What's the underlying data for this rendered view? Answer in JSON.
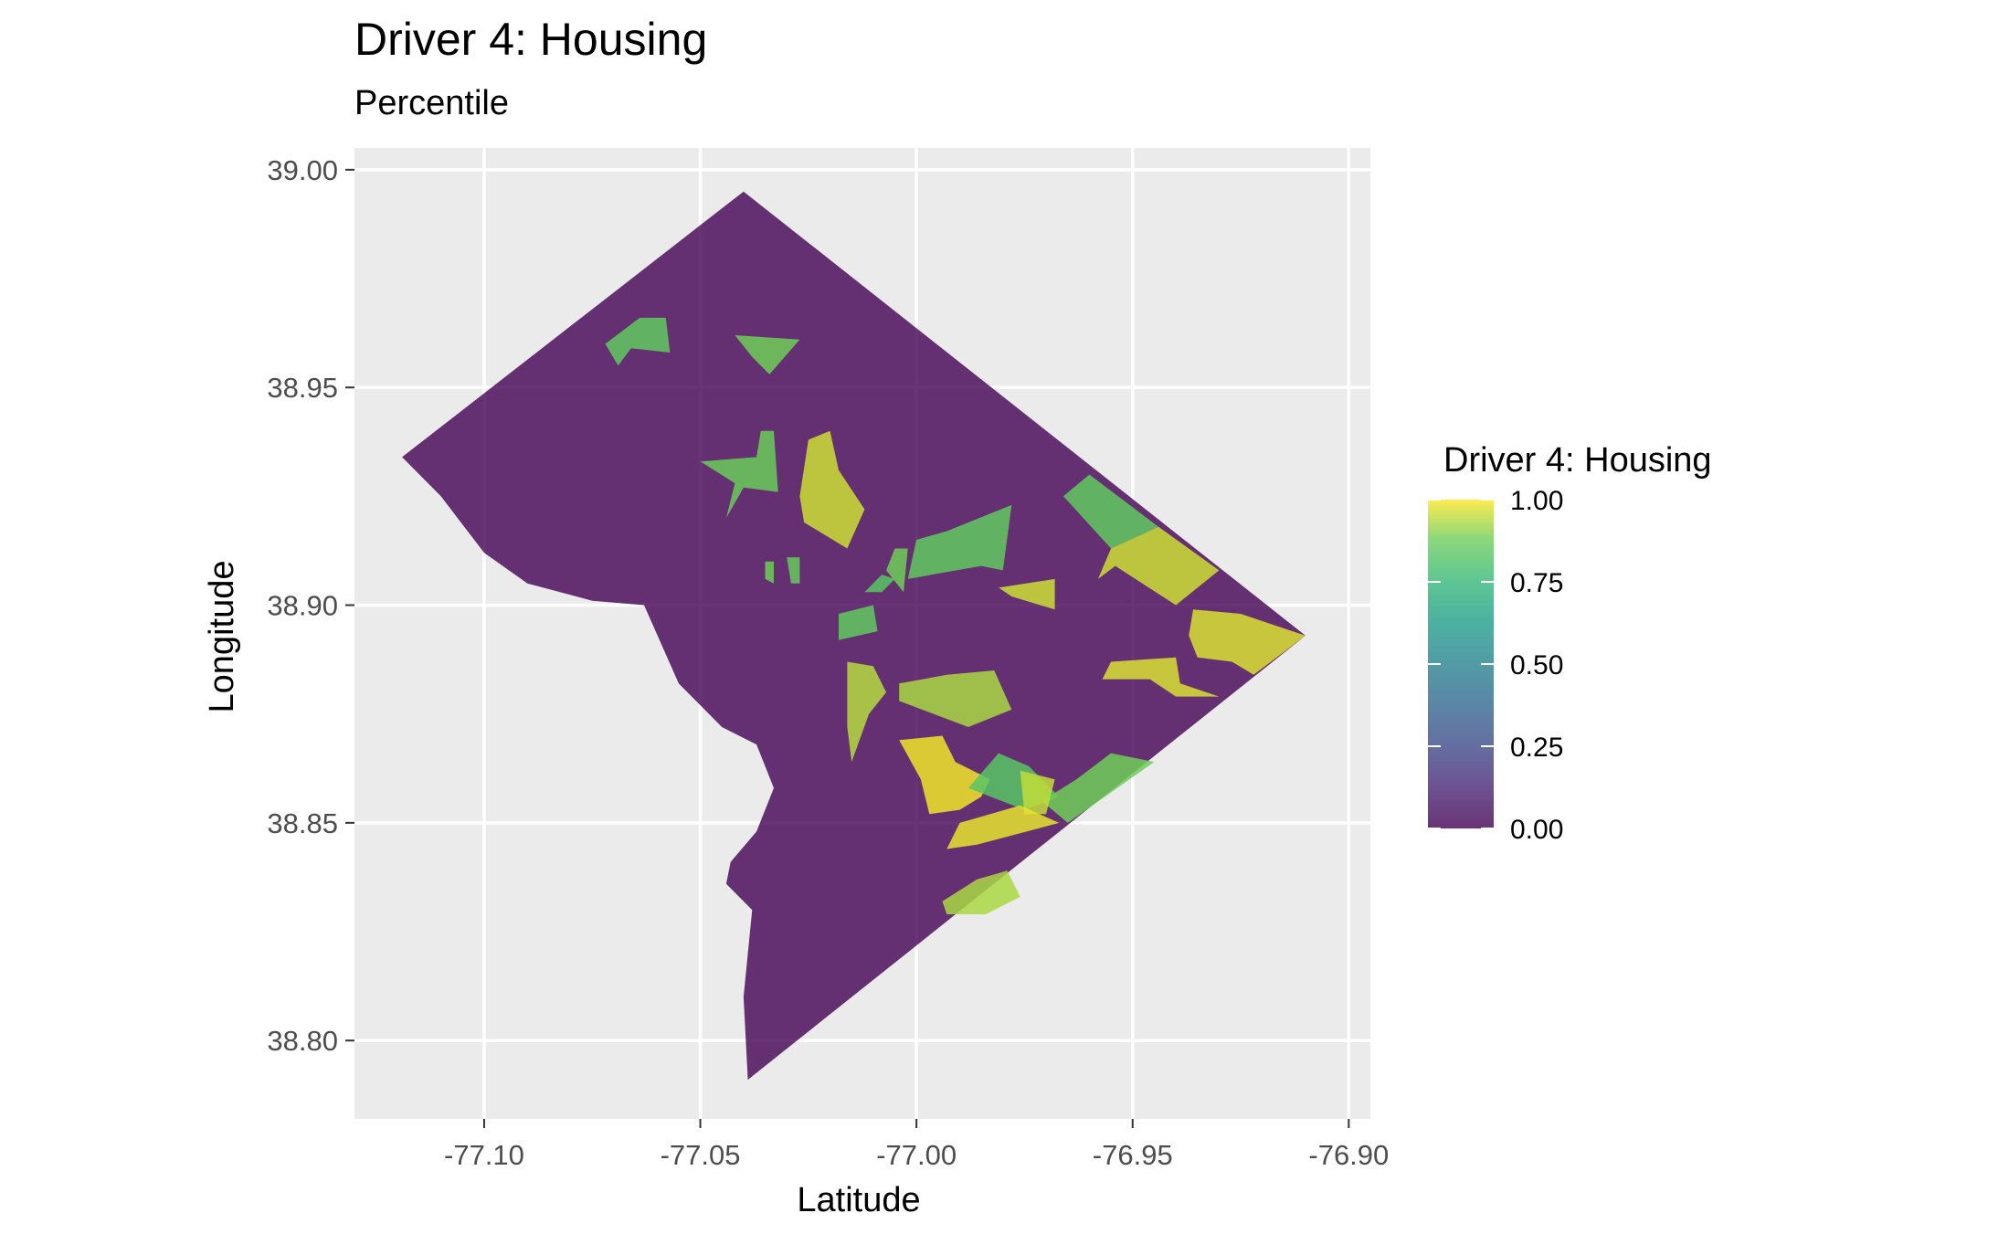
{
  "chart_data": {
    "type": "choropleth-map",
    "title": "Driver 4: Housing",
    "subtitle": "Percentile",
    "xlabel": "Latitude",
    "ylabel": "Longitude",
    "xlim": [
      -77.13,
      -76.895
    ],
    "ylim": [
      38.782,
      39.005
    ],
    "x_ticks": [
      -77.1,
      -77.05,
      -77.0,
      -76.95,
      -76.9
    ],
    "x_tick_labels": [
      "-77.10",
      "-77.05",
      "-77.00",
      "-76.95",
      "-76.90"
    ],
    "y_ticks": [
      38.8,
      38.85,
      38.9,
      38.95,
      39.0
    ],
    "y_tick_labels": [
      "38.80",
      "38.85",
      "38.90",
      "38.95",
      "39.00"
    ],
    "grid": true,
    "legend": {
      "title": "Driver 4: Housing",
      "placement": "right",
      "breaks": [
        0,
        0.25,
        0.5,
        0.75,
        1.0
      ],
      "break_labels": [
        "0.00",
        "0.25",
        "0.50",
        "0.75",
        "1.00"
      ]
    },
    "colors": {
      "panel_bg": "#ebebeb",
      "grid": "#ffffff",
      "low": "#440154",
      "mid": "#21908c",
      "high": "#fde725",
      "alpha": 0.8
    },
    "boundary": [
      [
        -77.04,
        38.995
      ],
      [
        -76.91,
        38.893
      ],
      [
        -77.039,
        38.791
      ],
      [
        -77.04,
        38.81
      ],
      [
        -77.038,
        38.83
      ],
      [
        -77.044,
        38.836
      ],
      [
        -77.043,
        38.841
      ],
      [
        -77.037,
        38.848
      ],
      [
        -77.033,
        38.858
      ],
      [
        -77.037,
        38.868
      ],
      [
        -77.045,
        38.872
      ],
      [
        -77.049,
        38.876
      ],
      [
        -77.055,
        38.882
      ],
      [
        -77.063,
        38.9
      ],
      [
        -77.075,
        38.901
      ],
      [
        -77.09,
        38.905
      ],
      [
        -77.1,
        38.912
      ],
      [
        -77.11,
        38.925
      ],
      [
        -77.119,
        38.934
      ]
    ],
    "regions": [
      {
        "value": 0.85,
        "polygon": [
          [
            -77.072,
            38.96
          ],
          [
            -77.064,
            38.966
          ],
          [
            -77.058,
            38.966
          ],
          [
            -77.057,
            38.958
          ],
          [
            -77.066,
            38.959
          ],
          [
            -77.069,
            38.955
          ]
        ]
      },
      {
        "value": 0.88,
        "polygon": [
          [
            -77.042,
            38.962
          ],
          [
            -77.027,
            38.961
          ],
          [
            -77.034,
            38.953
          ],
          [
            -77.038,
            38.957
          ]
        ]
      },
      {
        "value": 0.87,
        "polygon": [
          [
            -77.05,
            38.933
          ],
          [
            -77.037,
            38.934
          ],
          [
            -77.036,
            38.94
          ],
          [
            -77.033,
            38.94
          ],
          [
            -77.032,
            38.926
          ],
          [
            -77.04,
            38.927
          ],
          [
            -77.044,
            38.92
          ],
          [
            -77.042,
            38.928
          ]
        ]
      },
      {
        "value": 0.96,
        "polygon": [
          [
            -77.025,
            38.938
          ],
          [
            -77.02,
            38.94
          ],
          [
            -77.018,
            38.931
          ],
          [
            -77.012,
            38.922
          ],
          [
            -77.016,
            38.913
          ],
          [
            -77.026,
            38.919
          ],
          [
            -77.027,
            38.925
          ]
        ]
      },
      {
        "value": 0.85,
        "polygon": [
          [
            -76.978,
            38.923
          ],
          [
            -76.993,
            38.917
          ],
          [
            -77.0,
            38.915
          ],
          [
            -77.002,
            38.906
          ],
          [
            -76.985,
            38.909
          ],
          [
            -76.98,
            38.908
          ]
        ]
      },
      {
        "value": 0.85,
        "polygon": [
          [
            -76.966,
            38.925
          ],
          [
            -76.96,
            38.93
          ],
          [
            -76.944,
            38.918
          ],
          [
            -76.955,
            38.913
          ]
        ]
      },
      {
        "value": 0.96,
        "polygon": [
          [
            -76.955,
            38.913
          ],
          [
            -76.944,
            38.918
          ],
          [
            -76.93,
            38.908
          ],
          [
            -76.94,
            38.9
          ],
          [
            -76.954,
            38.909
          ],
          [
            -76.958,
            38.906
          ]
        ]
      },
      {
        "value": 0.88,
        "polygon": [
          [
            -77.005,
            38.913
          ],
          [
            -77.002,
            38.913
          ],
          [
            -77.003,
            38.903
          ],
          [
            -77.007,
            38.908
          ]
        ]
      },
      {
        "value": 0.88,
        "polygon": [
          [
            -77.035,
            38.91
          ],
          [
            -77.033,
            38.91
          ],
          [
            -77.033,
            38.905
          ],
          [
            -77.035,
            38.906
          ]
        ]
      },
      {
        "value": 0.86,
        "polygon": [
          [
            -77.03,
            38.911
          ],
          [
            -77.027,
            38.911
          ],
          [
            -77.027,
            38.905
          ],
          [
            -77.029,
            38.905
          ]
        ]
      },
      {
        "value": 0.83,
        "polygon": [
          [
            -77.012,
            38.903
          ],
          [
            -77.008,
            38.907
          ],
          [
            -77.005,
            38.906
          ],
          [
            -77.008,
            38.903
          ]
        ]
      },
      {
        "value": 0.85,
        "polygon": [
          [
            -77.018,
            38.898
          ],
          [
            -77.01,
            38.9
          ],
          [
            -77.009,
            38.894
          ],
          [
            -77.018,
            38.892
          ]
        ]
      },
      {
        "value": 0.96,
        "polygon": [
          [
            -76.981,
            38.904
          ],
          [
            -76.968,
            38.906
          ],
          [
            -76.968,
            38.899
          ],
          [
            -76.978,
            38.902
          ]
        ]
      },
      {
        "value": 0.97,
        "polygon": [
          [
            -76.936,
            38.899
          ],
          [
            -76.925,
            38.898
          ],
          [
            -76.91,
            38.893
          ],
          [
            -76.922,
            38.884
          ],
          [
            -76.927,
            38.887
          ],
          [
            -76.935,
            38.888
          ],
          [
            -76.937,
            38.893
          ]
        ]
      },
      {
        "value": 0.97,
        "polygon": [
          [
            -76.955,
            38.887
          ],
          [
            -76.94,
            38.888
          ],
          [
            -76.939,
            38.882
          ],
          [
            -76.93,
            38.879
          ],
          [
            -76.94,
            38.879
          ],
          [
            -76.946,
            38.883
          ],
          [
            -76.957,
            38.883
          ]
        ]
      },
      {
        "value": 0.94,
        "polygon": [
          [
            -77.016,
            38.887
          ],
          [
            -77.01,
            38.886
          ],
          [
            -77.007,
            38.88
          ],
          [
            -77.011,
            38.875
          ],
          [
            -77.015,
            38.864
          ],
          [
            -77.016,
            38.872
          ]
        ]
      },
      {
        "value": 0.93,
        "polygon": [
          [
            -77.004,
            38.882
          ],
          [
            -76.993,
            38.884
          ],
          [
            -76.982,
            38.885
          ],
          [
            -76.978,
            38.876
          ],
          [
            -76.988,
            38.872
          ],
          [
            -77.004,
            38.878
          ]
        ]
      },
      {
        "value": 0.99,
        "polygon": [
          [
            -77.004,
            38.869
          ],
          [
            -76.994,
            38.87
          ],
          [
            -76.991,
            38.864
          ],
          [
            -76.983,
            38.86
          ],
          [
            -76.985,
            38.856
          ],
          [
            -76.99,
            38.853
          ],
          [
            -76.997,
            38.852
          ],
          [
            -76.999,
            38.86
          ]
        ]
      },
      {
        "value": 0.83,
        "polygon": [
          [
            -76.988,
            38.858
          ],
          [
            -76.981,
            38.866
          ],
          [
            -76.974,
            38.863
          ],
          [
            -76.967,
            38.856
          ],
          [
            -76.975,
            38.853
          ]
        ]
      },
      {
        "value": 0.88,
        "polygon": [
          [
            -76.955,
            38.866
          ],
          [
            -76.945,
            38.864
          ],
          [
            -76.965,
            38.85
          ],
          [
            -76.971,
            38.855
          ],
          [
            -76.963,
            38.86
          ]
        ]
      },
      {
        "value": 0.95,
        "polygon": [
          [
            -76.976,
            38.862
          ],
          [
            -76.968,
            38.86
          ],
          [
            -76.97,
            38.852
          ],
          [
            -76.975,
            38.852
          ]
        ]
      },
      {
        "value": 0.98,
        "polygon": [
          [
            -76.99,
            38.85
          ],
          [
            -76.976,
            38.854
          ],
          [
            -76.967,
            38.85
          ],
          [
            -76.986,
            38.845
          ],
          [
            -76.993,
            38.844
          ]
        ]
      },
      {
        "value": 0.93,
        "polygon": [
          [
            -76.994,
            38.832
          ],
          [
            -76.986,
            38.837
          ],
          [
            -76.979,
            38.839
          ],
          [
            -76.976,
            38.833
          ],
          [
            -76.984,
            38.829
          ],
          [
            -76.993,
            38.829
          ]
        ]
      }
    ]
  }
}
